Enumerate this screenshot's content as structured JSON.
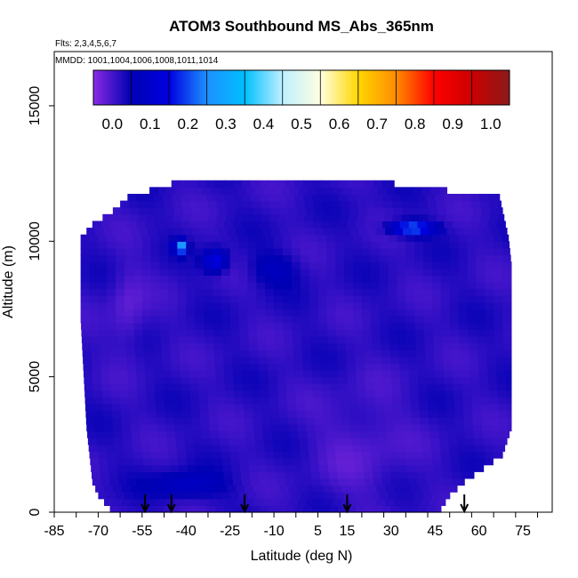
{
  "chart_data": {
    "type": "heatmap",
    "title": "ATOM3 Southbound MS_Abs_365nm",
    "subtitle_flights": "Flts: 2,3,4,5,6,7",
    "subtitle_dates": "MMDD: 1001,1004,1006,1008,1011,1014",
    "xlabel": "Latitude (deg N)",
    "ylabel": "Altitude (m)",
    "xlim": [
      -85,
      85
    ],
    "ylim": [
      0,
      17000
    ],
    "x_ticks": [
      -85,
      -70,
      -55,
      -40,
      -25,
      -10,
      5,
      15,
      30,
      45,
      60,
      75
    ],
    "x_tick_labels": [
      "-85",
      "-70",
      "-55",
      "-40",
      "-25",
      "-10",
      "5",
      "15",
      "30",
      "45",
      "60",
      "75"
    ],
    "y_ticks": [
      0,
      5000,
      10000,
      15000
    ],
    "y_tick_labels": [
      "0",
      "5000",
      "10000",
      "15000"
    ],
    "colorbar": {
      "range": [
        -0.05,
        1.05
      ],
      "ticks": [
        0.0,
        0.1,
        0.2,
        0.3,
        0.4,
        0.5,
        0.6,
        0.7,
        0.8,
        0.9,
        1.0
      ],
      "tick_labels": [
        "0.0",
        "0.1",
        "0.2",
        "0.3",
        "0.4",
        "0.5",
        "0.6",
        "0.7",
        "0.8",
        "0.9",
        "1.0"
      ],
      "stops": [
        "#8a2be2",
        "#0000b3",
        "#0000e0",
        "#1e90ff",
        "#00bfff",
        "#bfefff",
        "#ffffe0",
        "#ffd700",
        "#ff8c00",
        "#ff0000",
        "#cc0000",
        "#8b1a1a"
      ]
    },
    "coverage": {
      "alt_bin_size": 250,
      "lat_extent_by_altitude": [
        {
          "alt": 0,
          "lat_min": -66,
          "lat_max": 47
        },
        {
          "alt": 500,
          "lat_min": -70,
          "lat_max": 50
        },
        {
          "alt": 1000,
          "lat_min": -72,
          "lat_max": 55
        },
        {
          "alt": 2000,
          "lat_min": -73,
          "lat_max": 68
        },
        {
          "alt": 3000,
          "lat_min": -74,
          "lat_max": 71
        },
        {
          "alt": 5000,
          "lat_min": -75,
          "lat_max": 71
        },
        {
          "alt": 7000,
          "lat_min": -76,
          "lat_max": 71
        },
        {
          "alt": 9000,
          "lat_min": -76,
          "lat_max": 71
        },
        {
          "alt": 10000,
          "lat_min": -76,
          "lat_max": 70
        },
        {
          "alt": 10500,
          "lat_min": -72,
          "lat_max": 69
        },
        {
          "alt": 11000,
          "lat_min": -65,
          "lat_max": 68
        },
        {
          "alt": 11500,
          "lat_min": -60,
          "lat_max": 67
        },
        {
          "alt": 12000,
          "lat_min": -45,
          "lat_max": 31
        }
      ]
    },
    "field": {
      "background_value": 0.02,
      "features": [
        {
          "lat": -60,
          "alt": 7500,
          "value": -0.02,
          "radius_lat": 6,
          "radius_alt": 1500
        },
        {
          "lat": -42,
          "alt": 9800,
          "value": 0.28,
          "radius_lat": 2,
          "radius_alt": 250
        },
        {
          "lat": -30,
          "alt": 9300,
          "value": 0.16,
          "radius_lat": 4,
          "radius_alt": 400
        },
        {
          "lat": 37,
          "alt": 10500,
          "value": 0.24,
          "radius_lat": 7,
          "radius_alt": 250
        },
        {
          "lat": -40,
          "alt": 1000,
          "value": 0.09,
          "radius_lat": 12,
          "radius_alt": 500
        },
        {
          "lat": -10,
          "alt": 9000,
          "value": 0.07,
          "radius_lat": 8,
          "radius_alt": 600
        },
        {
          "lat": 20,
          "alt": 2500,
          "value": -0.01,
          "radius_lat": 15,
          "radius_alt": 2000
        }
      ]
    },
    "markers": {
      "type": "down-arrow",
      "latitudes": [
        -54,
        -45,
        -20,
        15,
        55
      ]
    }
  }
}
